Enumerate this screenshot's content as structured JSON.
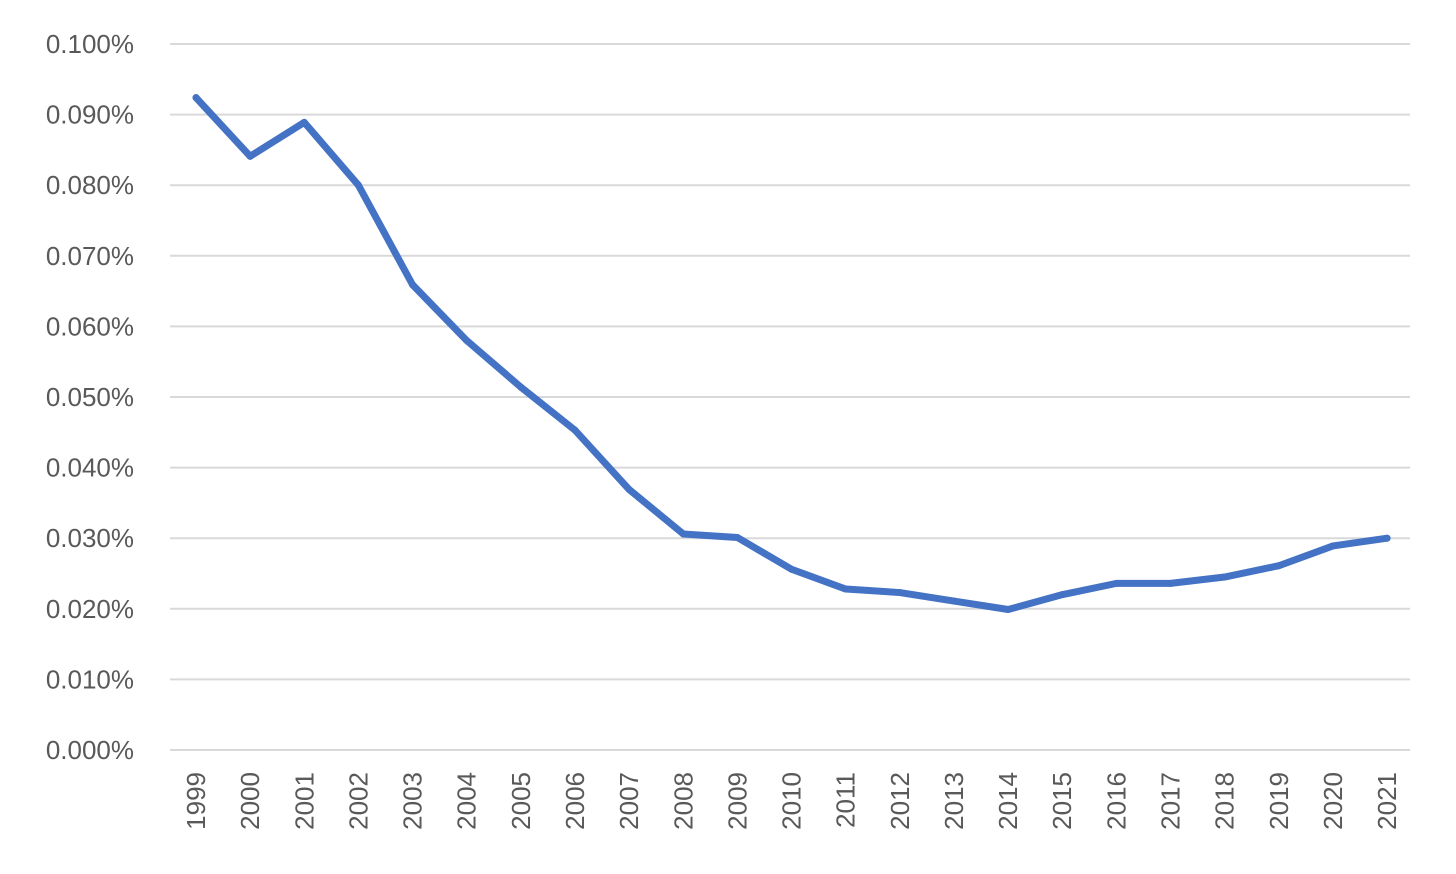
{
  "chart_data": {
    "type": "line",
    "title": "",
    "xlabel": "",
    "ylabel": "",
    "x": [
      "1999",
      "2000",
      "2001",
      "2002",
      "2003",
      "2004",
      "2005",
      "2006",
      "2007",
      "2008",
      "2009",
      "2010",
      "2011",
      "2012",
      "2013",
      "2014",
      "2015",
      "2016",
      "2017",
      "2018",
      "2019",
      "2020",
      "2021"
    ],
    "series": [
      {
        "color": "#4472c4",
        "values": [
          0.0924,
          0.0841,
          0.0889,
          0.08,
          0.0659,
          0.058,
          0.0514,
          0.0453,
          0.0369,
          0.0306,
          0.0301,
          0.0256,
          0.0228,
          0.0223,
          0.0211,
          0.0199,
          0.022,
          0.0236,
          0.0236,
          0.0245,
          0.0261,
          0.0289,
          0.03
        ]
      }
    ],
    "ylim": [
      0,
      0.1
    ],
    "y_ticks": [
      "0.000%",
      "0.010%",
      "0.020%",
      "0.030%",
      "0.040%",
      "0.050%",
      "0.060%",
      "0.070%",
      "0.080%",
      "0.090%",
      "0.100%"
    ],
    "y_tick_values": [
      0,
      0.01,
      0.02,
      0.03,
      0.04,
      0.05,
      0.06,
      0.07,
      0.08,
      0.09,
      0.1
    ],
    "grid": true,
    "legend": "none",
    "gridline_color": "#d9d9d9",
    "tick_label_color": "#595959"
  }
}
